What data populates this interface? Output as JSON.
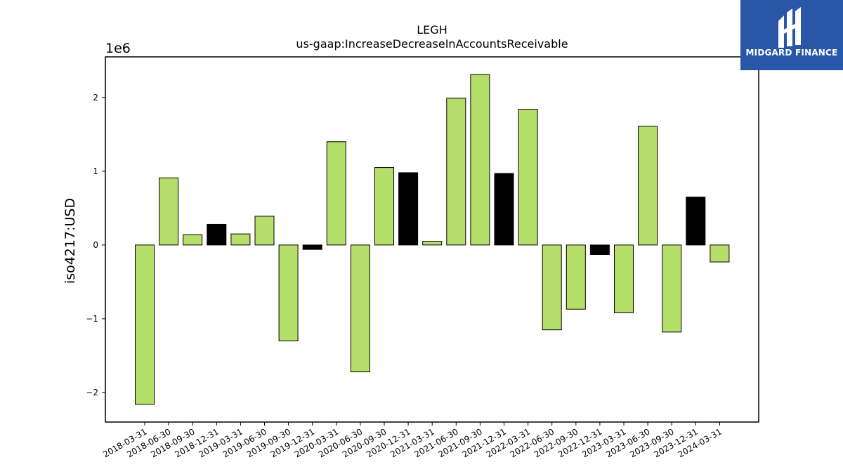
{
  "chart_data": {
    "type": "bar",
    "title": "LEGH",
    "subtitle": "us-gaap:IncreaseDecreaseInAccountsReceivable",
    "ylabel": "iso4217:USD",
    "xlabel": "",
    "y_multiplier_label": "1e6",
    "ylim": [
      -2.4,
      2.55
    ],
    "yticks": [
      -2,
      -1,
      0,
      1,
      2
    ],
    "ytick_labels": [
      "−2",
      "−1",
      "0",
      "1",
      "2"
    ],
    "grid": false,
    "categories": [
      "2018-03-31",
      "2018-06-30",
      "2018-09-30",
      "2018-12-31",
      "2019-03-31",
      "2019-06-30",
      "2019-09-30",
      "2019-12-31",
      "2020-03-31",
      "2020-06-30",
      "2020-09-30",
      "2020-12-31",
      "2021-03-31",
      "2021-06-30",
      "2021-09-30",
      "2021-12-31",
      "2022-03-31",
      "2022-06-30",
      "2022-09-30",
      "2022-12-31",
      "2023-03-31",
      "2023-06-30",
      "2023-09-30",
      "2023-12-31",
      "2024-03-31"
    ],
    "values": [
      -2.16,
      0.91,
      0.14,
      0.28,
      0.15,
      0.39,
      -1.3,
      -0.06,
      1.4,
      -1.72,
      1.05,
      0.98,
      0.05,
      1.99,
      2.31,
      0.97,
      1.84,
      -1.15,
      -0.87,
      -0.13,
      -0.92,
      1.61,
      -1.18,
      0.65,
      -0.23
    ],
    "bar_colors": [
      "#b5de6b",
      "#b5de6b",
      "#b5de6b",
      "#000000",
      "#b5de6b",
      "#b5de6b",
      "#b5de6b",
      "#000000",
      "#b5de6b",
      "#b5de6b",
      "#b5de6b",
      "#000000",
      "#b5de6b",
      "#b5de6b",
      "#b5de6b",
      "#000000",
      "#b5de6b",
      "#b5de6b",
      "#b5de6b",
      "#000000",
      "#b5de6b",
      "#b5de6b",
      "#b5de6b",
      "#000000",
      "#b5de6b"
    ]
  },
  "logo": {
    "text": "MIDGARD FINANCE",
    "background": "#2a56a8",
    "icon": "midgard-logo-icon"
  }
}
